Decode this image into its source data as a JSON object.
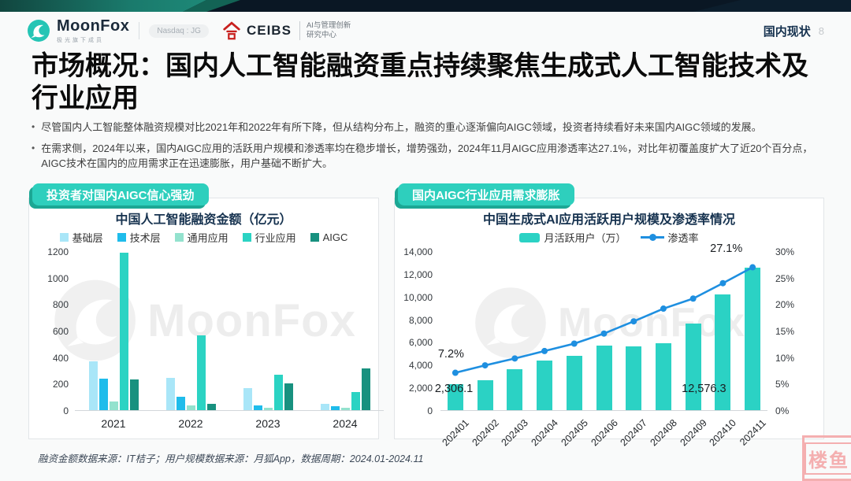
{
  "header": {
    "brand": "MoonFox",
    "brand_sub": "极光旗下成员",
    "nasdaq_badge": "Nasdaq : JG",
    "ceibs": "CEIBS",
    "ceibs_sub1": "AI与管理创新",
    "ceibs_sub2": "研究中心",
    "section": "国内现状",
    "page_number": "8"
  },
  "title": "市场概况：国内人工智能融资重点持续聚焦生成式人工智能技术及行业应用",
  "bullets": [
    "尽管国内人工智能整体融资规模对比2021年和2022年有所下降，但从结构分布上，融资的重心逐渐偏向AIGC领域，投资者持续看好未来国内AIGC领域的发展。",
    "在需求侧，2024年以来，国内AIGC应用的活跃用户规模和渗透率均在稳步增长，增势强劲，2024年11月AIGC应用渗透率达27.1%，对比年初覆盖度扩大了近20个百分点，AIGC技术在国内的应用需求正在迅速膨胀，用户基础不断扩大。"
  ],
  "left_panel_badge": "投资者对国内AIGC信心强劲",
  "right_panel_badge": "国内AIGC行业应用需求膨胀",
  "watermark": "MoonFox",
  "footer": "融资金额数据来源：IT桔子；用户规模数据来源：月狐App，数据周期：2024.01-2024.11",
  "stamp": "楼鱼",
  "colors": {
    "accent_teal": "#2ECFBD",
    "badge_shadow": "#1CA794",
    "topbar_navy": "#0A1724",
    "topbar_teal": "#1F8E7C",
    "line_blue": "#1E8FE0",
    "bar_teal": "#2BD2C4",
    "ceibs_red": "#C8201E",
    "stamp_pink": "#F4AFB0"
  },
  "chart_data": [
    {
      "type": "bar",
      "title": "中国人工智能融资金额（亿元）",
      "categories": [
        "2021",
        "2022",
        "2023",
        "2024"
      ],
      "series": [
        {
          "name": "基础层",
          "color": "#A9E6F8",
          "values": [
            370,
            245,
            165,
            50
          ]
        },
        {
          "name": "技术层",
          "color": "#1FBCEB",
          "values": [
            235,
            100,
            35,
            32
          ]
        },
        {
          "name": "通用应用",
          "color": "#93E2CE",
          "values": [
            65,
            35,
            15,
            15
          ]
        },
        {
          "name": "行业应用",
          "color": "#2BD3C3",
          "values": [
            1190,
            565,
            270,
            135
          ]
        },
        {
          "name": "AIGC",
          "color": "#18917F",
          "values": [
            230,
            50,
            205,
            315
          ]
        }
      ],
      "ylim": [
        0,
        1200
      ],
      "yticks": [
        0,
        200,
        400,
        600,
        800,
        1000,
        1200
      ],
      "legend_position": "top",
      "grid": false
    },
    {
      "type": "bar+line",
      "title": "中国生成式AI应用活跃用户规模及渗透率情况",
      "categories": [
        "202401",
        "202402",
        "202403",
        "202404",
        "202405",
        "202406",
        "202407",
        "202408",
        "202409",
        "202410",
        "202411"
      ],
      "bar_series": {
        "name": "月活跃用户（万）",
        "color": "#2BD2C4",
        "values": [
          2306.1,
          2650,
          3600,
          4400,
          4800,
          5700,
          5600,
          5900,
          7600,
          10200,
          12576.3
        ]
      },
      "line_series": {
        "name": "渗透率",
        "color": "#1E8FE0",
        "values": [
          7.2,
          8.6,
          9.9,
          11.3,
          12.7,
          14.6,
          16.9,
          19.3,
          21.2,
          24.1,
          27.1
        ]
      },
      "ylim_left": [
        0,
        14000
      ],
      "yticks_left": [
        "0",
        "2,000",
        "4,000",
        "6,000",
        "8,000",
        "10,000",
        "12,000",
        "14,000"
      ],
      "ylim_right": [
        0,
        30
      ],
      "yticks_right": [
        "0%",
        "5%",
        "10%",
        "15%",
        "20%",
        "25%",
        "30%"
      ],
      "annotations": {
        "first_pct": "7.2%",
        "first_bar": "2,306.1",
        "last_pct": "27.1%",
        "last_bar": "12,576.3"
      },
      "legend_position": "top",
      "grid": false
    }
  ]
}
